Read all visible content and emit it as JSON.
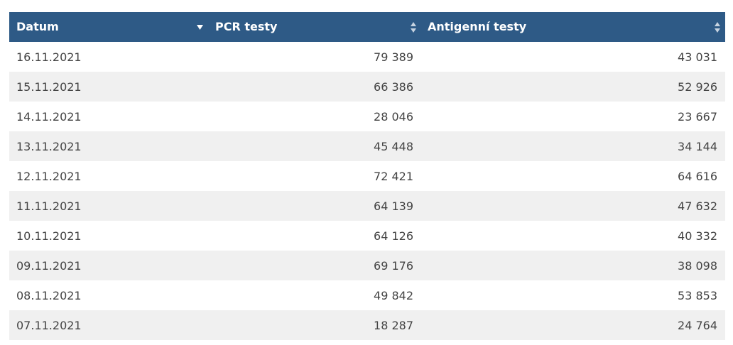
{
  "table": {
    "columns": [
      {
        "label": "Datum",
        "sort": "desc-active"
      },
      {
        "label": "PCR testy",
        "sort": "both"
      },
      {
        "label": "Antigenní testy",
        "sort": "both"
      }
    ],
    "rows": [
      {
        "date": "16.11.2021",
        "pcr": "79 389",
        "antigen": "43 031"
      },
      {
        "date": "15.11.2021",
        "pcr": "66 386",
        "antigen": "52 926"
      },
      {
        "date": "14.11.2021",
        "pcr": "28 046",
        "antigen": "23 667"
      },
      {
        "date": "13.11.2021",
        "pcr": "45 448",
        "antigen": "34 144"
      },
      {
        "date": "12.11.2021",
        "pcr": "72 421",
        "antigen": "64 616"
      },
      {
        "date": "11.11.2021",
        "pcr": "64 139",
        "antigen": "47 632"
      },
      {
        "date": "10.11.2021",
        "pcr": "64 126",
        "antigen": "40 332"
      },
      {
        "date": "09.11.2021",
        "pcr": "69 176",
        "antigen": "38 098"
      },
      {
        "date": "08.11.2021",
        "pcr": "49 842",
        "antigen": "53 853"
      },
      {
        "date": "07.11.2021",
        "pcr": "18 287",
        "antigen": "24 764"
      }
    ]
  },
  "colors": {
    "header_bg": "#2e5a86",
    "header_text": "#ffffff",
    "row_alt": "#f0f0f0",
    "text": "#444444"
  }
}
